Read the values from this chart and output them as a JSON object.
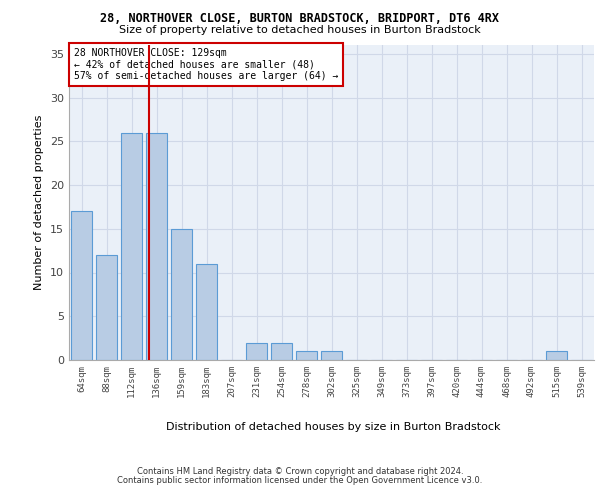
{
  "title1": "28, NORTHOVER CLOSE, BURTON BRADSTOCK, BRIDPORT, DT6 4RX",
  "title2": "Size of property relative to detached houses in Burton Bradstock",
  "xlabel": "Distribution of detached houses by size in Burton Bradstock",
  "ylabel": "Number of detached properties",
  "categories": [
    "64sqm",
    "88sqm",
    "112sqm",
    "136sqm",
    "159sqm",
    "183sqm",
    "207sqm",
    "231sqm",
    "254sqm",
    "278sqm",
    "302sqm",
    "325sqm",
    "349sqm",
    "373sqm",
    "397sqm",
    "420sqm",
    "444sqm",
    "468sqm",
    "492sqm",
    "515sqm",
    "539sqm"
  ],
  "values": [
    17,
    12,
    26,
    26,
    15,
    11,
    0,
    2,
    2,
    1,
    1,
    0,
    0,
    0,
    0,
    0,
    0,
    0,
    0,
    1,
    0
  ],
  "bar_color": "#b8cce4",
  "bar_edge_color": "#5b9bd5",
  "vline_color": "#cc0000",
  "annotation_text": "28 NORTHOVER CLOSE: 129sqm\n← 42% of detached houses are smaller (48)\n57% of semi-detached houses are larger (64) →",
  "annotation_box_color": "#ffffff",
  "annotation_box_edge": "#cc0000",
  "ylim": [
    0,
    36
  ],
  "yticks": [
    0,
    5,
    10,
    15,
    20,
    25,
    30,
    35
  ],
  "grid_color": "#d0d8e8",
  "bg_color": "#eaf0f8",
  "footer1": "Contains HM Land Registry data © Crown copyright and database right 2024.",
  "footer2": "Contains public sector information licensed under the Open Government Licence v3.0."
}
